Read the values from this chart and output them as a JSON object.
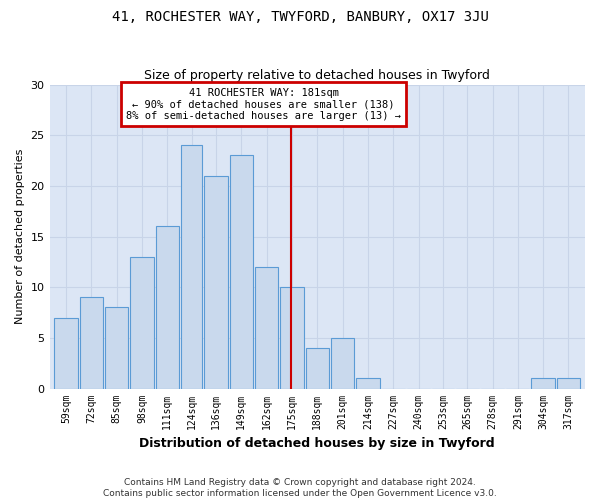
{
  "title": "41, ROCHESTER WAY, TWYFORD, BANBURY, OX17 3JU",
  "subtitle": "Size of property relative to detached houses in Twyford",
  "xlabel": "Distribution of detached houses by size in Twyford",
  "ylabel": "Number of detached properties",
  "categories": [
    "59sqm",
    "72sqm",
    "85sqm",
    "98sqm",
    "111sqm",
    "124sqm",
    "136sqm",
    "149sqm",
    "162sqm",
    "175sqm",
    "188sqm",
    "201sqm",
    "214sqm",
    "227sqm",
    "240sqm",
    "253sqm",
    "265sqm",
    "278sqm",
    "291sqm",
    "304sqm",
    "317sqm"
  ],
  "values": [
    7,
    9,
    8,
    13,
    16,
    24,
    21,
    23,
    12,
    10,
    4,
    5,
    1,
    0,
    0,
    0,
    0,
    0,
    0,
    1,
    1
  ],
  "bar_color": "#c9d9ed",
  "bar_edge_color": "#5b9bd5",
  "vline_x": 181,
  "bin_edges": [
    59,
    72,
    85,
    98,
    111,
    124,
    136,
    149,
    162,
    175,
    188,
    201,
    214,
    227,
    240,
    253,
    265,
    278,
    291,
    304,
    317,
    330
  ],
  "ylim": [
    0,
    30
  ],
  "annotation_text": "41 ROCHESTER WAY: 181sqm\n← 90% of detached houses are smaller (138)\n8% of semi-detached houses are larger (13) →",
  "annotation_box_color": "#ffffff",
  "annotation_box_edge_color": "#cc0000",
  "vline_color": "#cc0000",
  "grid_color": "#c8d4e8",
  "ax_background_color": "#dce6f5",
  "fig_background_color": "#ffffff",
  "footer_line1": "Contains HM Land Registry data © Crown copyright and database right 2024.",
  "footer_line2": "Contains public sector information licensed under the Open Government Licence v3.0."
}
